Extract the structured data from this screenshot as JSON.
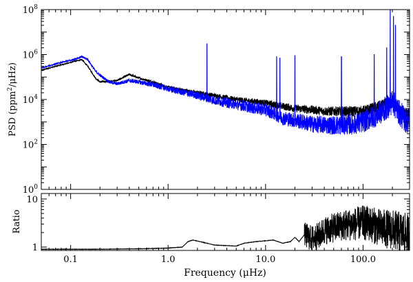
{
  "chart_data": [
    {
      "type": "line",
      "xscale": "log",
      "yscale": "log",
      "xlim": [
        0.05,
        300
      ],
      "ylim": [
        1,
        100000000
      ],
      "xlabel": "Frequency (μHz)",
      "ylabel_parts": {
        "main": "PSD (ppm",
        "sup": "2",
        "rest": "/μHz)"
      },
      "xticks": [
        {
          "value": 0.1,
          "label": ""
        },
        {
          "value": 1,
          "label": ""
        },
        {
          "value": 10,
          "label": ""
        },
        {
          "value": 100,
          "label": ""
        }
      ],
      "yticks": [
        {
          "value": 1,
          "base": "10",
          "exp": "0"
        },
        {
          "value": 100,
          "base": "10",
          "exp": "2"
        },
        {
          "value": 10000,
          "base": "10",
          "exp": "4"
        },
        {
          "value": 1000000,
          "base": "10",
          "exp": "6"
        },
        {
          "value": 100000000,
          "base": "10",
          "exp": "8"
        }
      ],
      "series": [
        {
          "color": "#000000",
          "anchors": [
            [
              0.05,
              200000
            ],
            [
              0.07,
              300000
            ],
            [
              0.1,
              450000
            ],
            [
              0.13,
              600000
            ],
            [
              0.15,
              300000
            ],
            [
              0.18,
              90000
            ],
            [
              0.2,
              60000
            ],
            [
              0.3,
              70000
            ],
            [
              0.4,
              130000
            ],
            [
              0.5,
              90000
            ],
            [
              0.7,
              60000
            ],
            [
              1,
              35000
            ],
            [
              1.5,
              25000
            ],
            [
              2,
              20000
            ],
            [
              3,
              15000
            ],
            [
              5,
              10000
            ],
            [
              8,
              8000
            ],
            [
              10,
              7000
            ],
            [
              12,
              6000
            ],
            [
              15,
              5000
            ],
            [
              20,
              4000
            ],
            [
              30,
              3500
            ],
            [
              40,
              3000
            ],
            [
              60,
              3000
            ],
            [
              100,
              3000
            ],
            [
              150,
              5000
            ],
            [
              200,
              8000
            ],
            [
              250,
              2500
            ],
            [
              280,
              2000
            ]
          ],
          "noise": [
            0.02,
            0.3
          ],
          "spikes": []
        },
        {
          "color": "#0000ff",
          "anchors": [
            [
              0.05,
              250000
            ],
            [
              0.07,
              380000
            ],
            [
              0.1,
              550000
            ],
            [
              0.13,
              800000
            ],
            [
              0.15,
              600000
            ],
            [
              0.18,
              180000
            ],
            [
              0.2,
              120000
            ],
            [
              0.25,
              60000
            ],
            [
              0.3,
              50000
            ],
            [
              0.4,
              70000
            ],
            [
              0.5,
              60000
            ],
            [
              0.7,
              45000
            ],
            [
              1,
              30000
            ],
            [
              1.5,
              20000
            ],
            [
              2,
              15000
            ],
            [
              3,
              9000
            ],
            [
              5,
              6000
            ],
            [
              8,
              4000
            ],
            [
              10,
              3500
            ],
            [
              12,
              2500
            ],
            [
              15,
              1500
            ],
            [
              20,
              1200
            ],
            [
              30,
              800
            ],
            [
              50,
              700
            ],
            [
              80,
              800
            ],
            [
              100,
              1000
            ],
            [
              150,
              2500
            ],
            [
              180,
              5000
            ],
            [
              200,
              8000
            ],
            [
              230,
              3000
            ],
            [
              260,
              1500
            ],
            [
              280,
              1200
            ]
          ],
          "noise": [
            0.03,
            0.6
          ],
          "spikes": [
            [
              2.5,
              3000000
            ],
            [
              13,
              800000
            ],
            [
              14,
              700000
            ],
            [
              20,
              900000
            ],
            [
              60,
              800000
            ],
            [
              130,
              1000000
            ],
            [
              175,
              2000000
            ],
            [
              190,
              100000000
            ],
            [
              205,
              50000000
            ],
            [
              215,
              20000000
            ]
          ]
        }
      ]
    },
    {
      "type": "line",
      "xscale": "log",
      "yscale": "log",
      "xlim": [
        0.05,
        300
      ],
      "ylim": [
        0.85,
        13
      ],
      "xlabel": "Frequency (μHz)",
      "ylabel": "Ratio",
      "xticks": [
        {
          "value": 0.1,
          "label": "0.1"
        },
        {
          "value": 1,
          "label": "1.0"
        },
        {
          "value": 10,
          "label": "10.0"
        },
        {
          "value": 100,
          "label": "100.0"
        }
      ],
      "yticks": [
        {
          "value": 1,
          "label": "1"
        },
        {
          "value": 10,
          "label": "10"
        }
      ],
      "series": [
        {
          "color": "#000000",
          "anchors": [
            [
              0.05,
              0.9
            ],
            [
              0.2,
              0.9
            ],
            [
              0.5,
              0.92
            ],
            [
              1,
              0.95
            ],
            [
              1.4,
              1.0
            ],
            [
              1.6,
              1.3
            ],
            [
              1.8,
              1.4
            ],
            [
              2.5,
              1.2
            ],
            [
              3,
              1.1
            ],
            [
              5,
              1.05
            ],
            [
              6,
              1.2
            ],
            [
              8,
              1.3
            ],
            [
              10,
              1.35
            ],
            [
              12,
              1.4
            ],
            [
              15,
              1.2
            ],
            [
              18,
              1.3
            ],
            [
              20,
              1.6
            ],
            [
              22,
              1.3
            ],
            [
              25,
              1.8
            ],
            [
              30,
              1.5
            ],
            [
              35,
              1.7
            ],
            [
              40,
              2.2
            ],
            [
              50,
              2.5
            ],
            [
              60,
              2.8
            ],
            [
              80,
              3.0
            ],
            [
              100,
              3.2
            ],
            [
              120,
              3.0
            ],
            [
              150,
              2.5
            ],
            [
              200,
              2.3
            ],
            [
              250,
              2.0
            ],
            [
              280,
              1.8
            ]
          ],
          "noise": [
            0.0,
            0.45
          ],
          "noise_start": 25
        }
      ]
    }
  ]
}
